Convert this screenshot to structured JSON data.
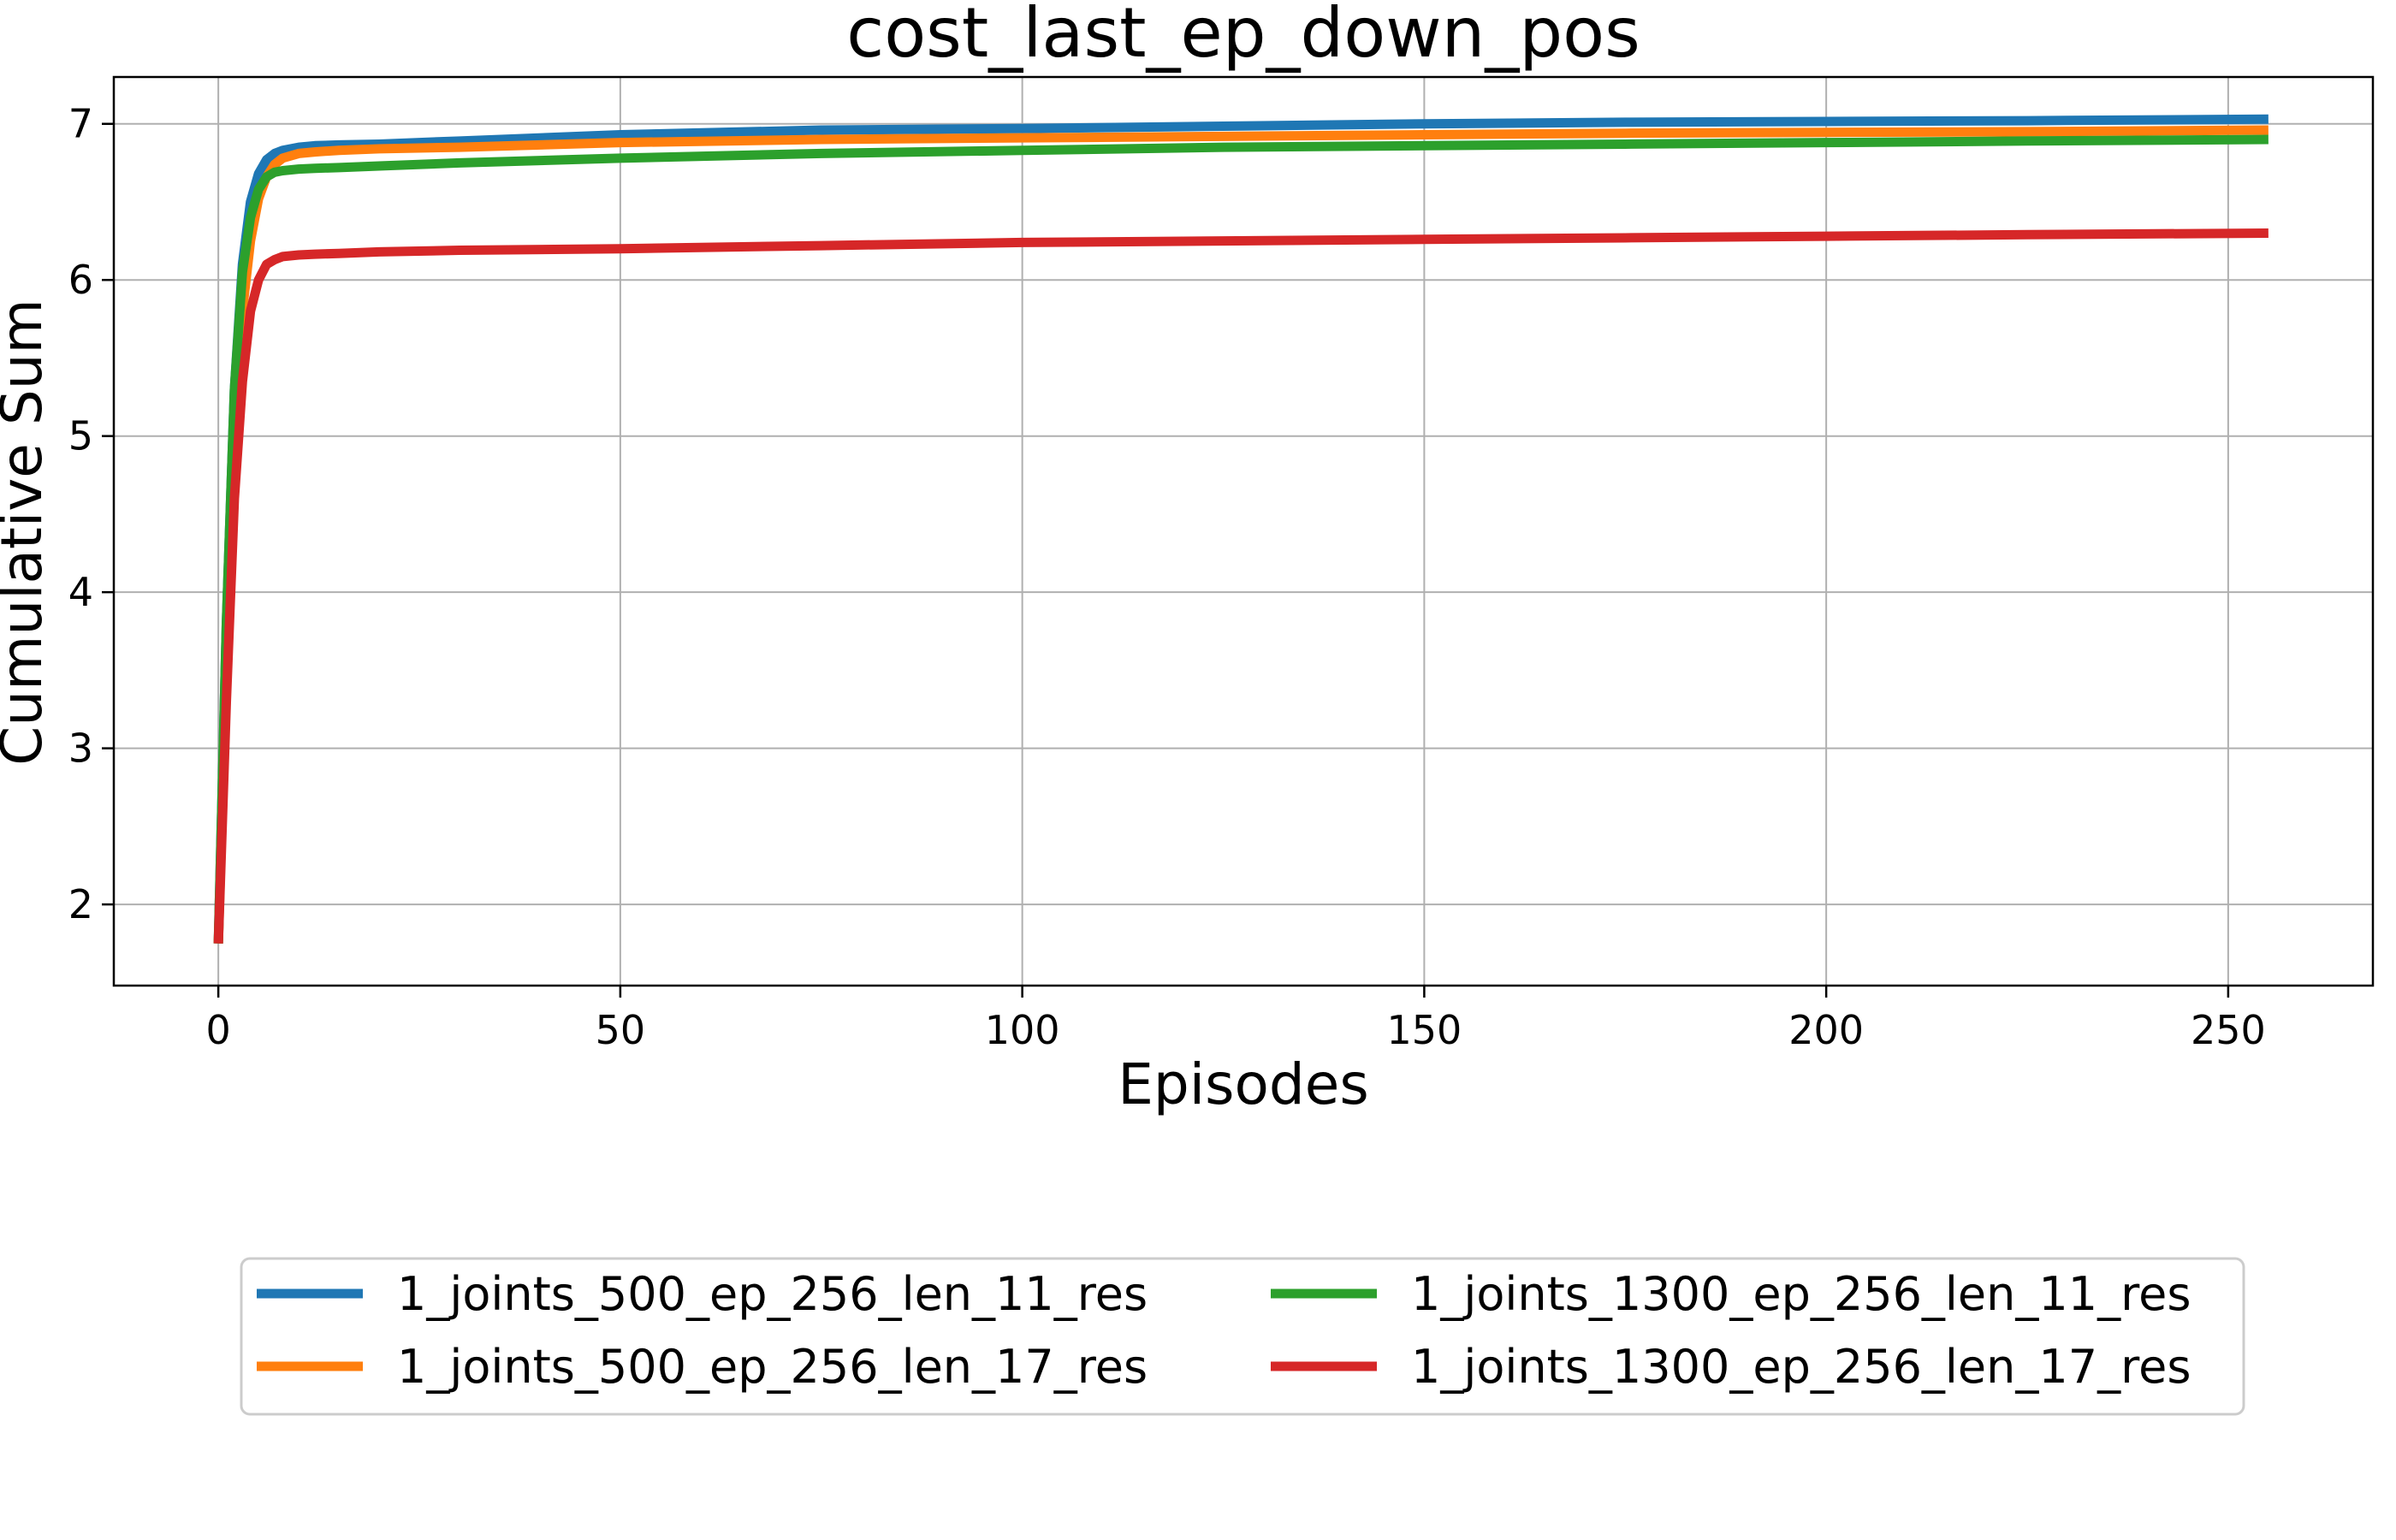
{
  "chart_data": {
    "type": "line",
    "title": "cost_last_ep_down_pos",
    "xlabel": "Episodes",
    "ylabel": "Cumulative Sum",
    "xlim": [
      -13,
      268
    ],
    "ylim": [
      1.48,
      7.3
    ],
    "xticks": [
      0,
      50,
      100,
      150,
      200,
      250
    ],
    "yticks": [
      2,
      3,
      4,
      5,
      6,
      7
    ],
    "grid": true,
    "legend": {
      "placement": "bottom-center",
      "columns": 2
    },
    "series": [
      {
        "name": "1_joints_500_ep_256_len_11_res",
        "color": "#1f77b4",
        "x": [
          0,
          1,
          2,
          3,
          4,
          5,
          6,
          7,
          8,
          10,
          12,
          15,
          20,
          30,
          50,
          75,
          100,
          125,
          150,
          175,
          200,
          225,
          255
        ],
        "y": [
          1.75,
          3.8,
          5.3,
          6.1,
          6.5,
          6.68,
          6.77,
          6.81,
          6.83,
          6.85,
          6.86,
          6.865,
          6.87,
          6.89,
          6.93,
          6.96,
          6.97,
          6.985,
          7.0,
          7.01,
          7.015,
          7.02,
          7.03
        ]
      },
      {
        "name": "1_joints_500_ep_256_len_17_res",
        "color": "#ff7f0e",
        "x": [
          0,
          1,
          2,
          3,
          4,
          5,
          6,
          7,
          8,
          10,
          12,
          15,
          20,
          30,
          50,
          75,
          100,
          125,
          150,
          175,
          200,
          225,
          255
        ],
        "y": [
          1.75,
          3.5,
          4.9,
          5.8,
          6.25,
          6.52,
          6.66,
          6.74,
          6.78,
          6.81,
          6.82,
          6.83,
          6.84,
          6.85,
          6.88,
          6.9,
          6.91,
          6.92,
          6.93,
          6.94,
          6.945,
          6.95,
          6.96
        ]
      },
      {
        "name": "1_joints_1300_ep_256_len_11_res",
        "color": "#2ca02c",
        "x": [
          0,
          1,
          2,
          3,
          4,
          5,
          6,
          7,
          8,
          10,
          12,
          15,
          20,
          30,
          50,
          75,
          100,
          125,
          150,
          175,
          200,
          225,
          255
        ],
        "y": [
          1.75,
          3.8,
          5.3,
          6.05,
          6.4,
          6.58,
          6.66,
          6.69,
          6.7,
          6.71,
          6.715,
          6.72,
          6.73,
          6.75,
          6.78,
          6.81,
          6.83,
          6.85,
          6.86,
          6.87,
          6.88,
          6.89,
          6.9
        ]
      },
      {
        "name": "1_joints_1300_ep_256_len_17_res",
        "color": "#d62728",
        "x": [
          0,
          1,
          2,
          3,
          4,
          5,
          6,
          7,
          8,
          10,
          12,
          15,
          20,
          30,
          50,
          75,
          100,
          125,
          150,
          175,
          200,
          225,
          255
        ],
        "y": [
          1.75,
          3.3,
          4.6,
          5.35,
          5.8,
          6.0,
          6.1,
          6.13,
          6.15,
          6.16,
          6.165,
          6.17,
          6.18,
          6.19,
          6.2,
          6.22,
          6.24,
          6.25,
          6.26,
          6.27,
          6.28,
          6.29,
          6.3
        ]
      }
    ]
  }
}
